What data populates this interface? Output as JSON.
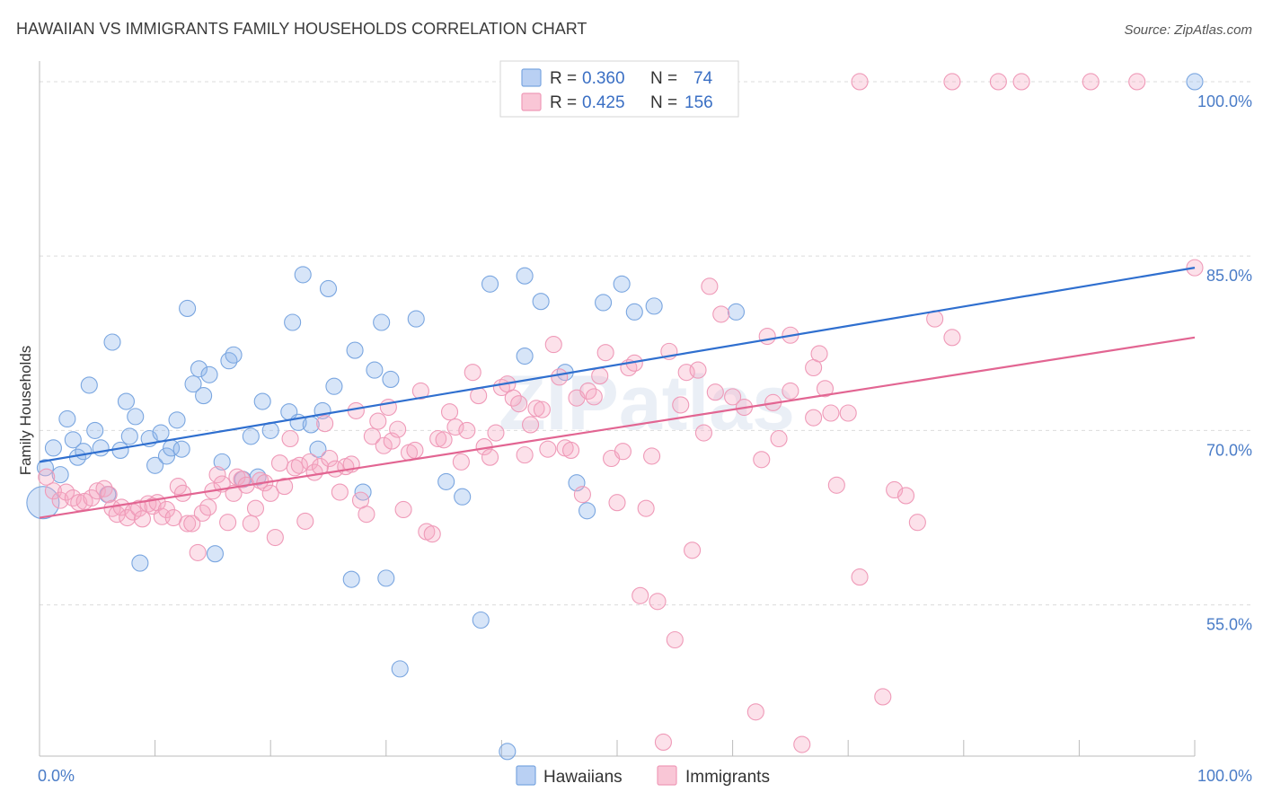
{
  "title": "HAWAIIAN VS IMMIGRANTS FAMILY HOUSEHOLDS CORRELATION CHART",
  "source": "Source: ZipAtlas.com",
  "watermark": "ZIPatlas",
  "legend": {
    "r_label": "R =",
    "n_label": "N =",
    "rows": [
      {
        "r": "0.360",
        "n": "74"
      },
      {
        "r": "0.425",
        "n": "156"
      }
    ]
  },
  "chart_data": {
    "type": "scatter",
    "ylabel": "Family Households",
    "x_tick_labels": [
      "0.0%",
      "100.0%"
    ],
    "y_tick_labels": [
      "55.0%",
      "70.0%",
      "85.0%",
      "100.0%"
    ],
    "y_ticks": [
      55,
      70,
      85,
      100
    ],
    "xlim": [
      0,
      100
    ],
    "ylim": [
      42,
      101
    ],
    "grid": true,
    "legend_position": "top-center",
    "colors": {
      "hawaiians": "#7aa6e0",
      "hawaiians_fill": "rgba(140,180,235,0.35)",
      "hawaiians_line": "#2f6fcf",
      "immigrants": "#ef9ab8",
      "immigrants_fill": "rgba(245,170,195,0.35)",
      "immigrants_line": "#e26592"
    },
    "series": [
      {
        "name": "Hawaiians",
        "trend": {
          "x": [
            0,
            100
          ],
          "y": [
            67.3,
            84.0
          ]
        },
        "points": [
          [
            0.3,
            63.8
          ],
          [
            0.5,
            66.8
          ],
          [
            1.2,
            68.5
          ],
          [
            1.8,
            66.2
          ],
          [
            2.4,
            71.0
          ],
          [
            2.9,
            69.2
          ],
          [
            3.3,
            67.7
          ],
          [
            3.8,
            68.2
          ],
          [
            4.3,
            73.9
          ],
          [
            4.8,
            70.0
          ],
          [
            5.3,
            68.5
          ],
          [
            5.9,
            64.5
          ],
          [
            6.3,
            77.6
          ],
          [
            7.0,
            68.3
          ],
          [
            7.5,
            72.5
          ],
          [
            7.8,
            69.5
          ],
          [
            8.3,
            71.2
          ],
          [
            8.7,
            58.6
          ],
          [
            9.5,
            69.3
          ],
          [
            10.0,
            67.0
          ],
          [
            10.5,
            69.8
          ],
          [
            11.0,
            67.8
          ],
          [
            11.4,
            68.5
          ],
          [
            11.9,
            70.9
          ],
          [
            12.3,
            68.4
          ],
          [
            12.8,
            80.5
          ],
          [
            13.3,
            74.0
          ],
          [
            13.8,
            75.3
          ],
          [
            14.2,
            73.0
          ],
          [
            14.7,
            74.8
          ],
          [
            15.2,
            59.4
          ],
          [
            15.8,
            67.3
          ],
          [
            16.4,
            76.0
          ],
          [
            16.8,
            76.5
          ],
          [
            17.6,
            65.8
          ],
          [
            18.3,
            69.5
          ],
          [
            18.9,
            66.0
          ],
          [
            19.3,
            72.5
          ],
          [
            20.0,
            70.0
          ],
          [
            21.6,
            71.6
          ],
          [
            21.9,
            79.3
          ],
          [
            22.4,
            70.7
          ],
          [
            22.8,
            83.4
          ],
          [
            23.5,
            70.5
          ],
          [
            24.1,
            68.4
          ],
          [
            24.5,
            71.7
          ],
          [
            25.0,
            82.2
          ],
          [
            25.5,
            73.8
          ],
          [
            27.0,
            57.2
          ],
          [
            27.3,
            76.9
          ],
          [
            28.0,
            64.7
          ],
          [
            29.0,
            75.2
          ],
          [
            29.6,
            79.3
          ],
          [
            30.0,
            57.3
          ],
          [
            30.4,
            74.4
          ],
          [
            31.2,
            49.5
          ],
          [
            32.6,
            79.6
          ],
          [
            35.2,
            65.6
          ],
          [
            36.6,
            64.3
          ],
          [
            38.2,
            53.7
          ],
          [
            39.0,
            82.6
          ],
          [
            40.5,
            42.4
          ],
          [
            42.0,
            83.3
          ],
          [
            42.0,
            76.4
          ],
          [
            43.4,
            81.1
          ],
          [
            45.5,
            75.0
          ],
          [
            46.5,
            65.5
          ],
          [
            47.4,
            63.1
          ],
          [
            48.8,
            81.0
          ],
          [
            50.4,
            82.6
          ],
          [
            51.5,
            80.2
          ],
          [
            53.2,
            80.7
          ],
          [
            60.3,
            80.2
          ],
          [
            100.0,
            100.0
          ]
        ]
      },
      {
        "name": "Immigrants",
        "trend": {
          "x": [
            0,
            100
          ],
          "y": [
            62.5,
            78.0
          ]
        },
        "points": [
          [
            0.6,
            66.0
          ],
          [
            1.2,
            64.8
          ],
          [
            1.8,
            64.0
          ],
          [
            2.3,
            64.7
          ],
          [
            2.9,
            64.2
          ],
          [
            3.4,
            63.8
          ],
          [
            3.9,
            63.9
          ],
          [
            4.5,
            64.2
          ],
          [
            5.0,
            64.8
          ],
          [
            5.6,
            65.0
          ],
          [
            6.0,
            64.5
          ],
          [
            6.3,
            63.3
          ],
          [
            6.7,
            62.8
          ],
          [
            7.1,
            63.4
          ],
          [
            7.6,
            62.5
          ],
          [
            8.1,
            63.0
          ],
          [
            8.6,
            63.3
          ],
          [
            8.9,
            62.4
          ],
          [
            9.4,
            63.7
          ],
          [
            9.8,
            63.5
          ],
          [
            10.2,
            63.8
          ],
          [
            10.6,
            62.6
          ],
          [
            11.0,
            63.2
          ],
          [
            11.6,
            62.5
          ],
          [
            12.0,
            65.2
          ],
          [
            12.4,
            64.6
          ],
          [
            12.8,
            62.0
          ],
          [
            13.2,
            62.0
          ],
          [
            13.7,
            59.5
          ],
          [
            14.1,
            62.9
          ],
          [
            14.6,
            63.4
          ],
          [
            15.0,
            64.8
          ],
          [
            15.4,
            66.2
          ],
          [
            15.8,
            65.4
          ],
          [
            16.3,
            62.1
          ],
          [
            16.8,
            64.6
          ],
          [
            17.1,
            66.0
          ],
          [
            17.5,
            65.8
          ],
          [
            17.9,
            65.3
          ],
          [
            18.3,
            62.0
          ],
          [
            18.7,
            63.3
          ],
          [
            19.1,
            65.7
          ],
          [
            19.5,
            65.5
          ],
          [
            20.0,
            64.6
          ],
          [
            20.4,
            60.8
          ],
          [
            20.8,
            67.2
          ],
          [
            21.2,
            65.2
          ],
          [
            21.7,
            69.3
          ],
          [
            22.1,
            66.8
          ],
          [
            22.5,
            67.0
          ],
          [
            23.0,
            62.2
          ],
          [
            23.4,
            67.3
          ],
          [
            23.8,
            66.4
          ],
          [
            24.3,
            66.9
          ],
          [
            24.7,
            70.6
          ],
          [
            25.1,
            67.6
          ],
          [
            25.6,
            66.7
          ],
          [
            26.0,
            64.7
          ],
          [
            26.5,
            66.9
          ],
          [
            27.0,
            67.1
          ],
          [
            27.4,
            71.7
          ],
          [
            27.8,
            64.0
          ],
          [
            28.3,
            62.8
          ],
          [
            28.8,
            69.5
          ],
          [
            29.3,
            70.8
          ],
          [
            29.8,
            68.7
          ],
          [
            30.2,
            72.0
          ],
          [
            30.5,
            69.1
          ],
          [
            31.0,
            70.1
          ],
          [
            31.5,
            63.2
          ],
          [
            32.0,
            68.1
          ],
          [
            32.5,
            68.3
          ],
          [
            33.0,
            73.4
          ],
          [
            33.5,
            61.3
          ],
          [
            34.0,
            61.1
          ],
          [
            34.5,
            69.3
          ],
          [
            35.0,
            69.2
          ],
          [
            35.5,
            71.6
          ],
          [
            36.0,
            70.3
          ],
          [
            36.5,
            67.3
          ],
          [
            37.0,
            70.0
          ],
          [
            37.5,
            75.0
          ],
          [
            38.0,
            73.0
          ],
          [
            38.5,
            68.6
          ],
          [
            39.0,
            67.7
          ],
          [
            39.5,
            69.8
          ],
          [
            40.0,
            73.7
          ],
          [
            40.5,
            74.0
          ],
          [
            41.0,
            72.8
          ],
          [
            41.5,
            72.3
          ],
          [
            42.0,
            67.9
          ],
          [
            42.5,
            70.5
          ],
          [
            43.0,
            71.9
          ],
          [
            43.5,
            71.8
          ],
          [
            44.0,
            68.4
          ],
          [
            44.5,
            77.4
          ],
          [
            45.0,
            74.6
          ],
          [
            45.5,
            68.5
          ],
          [
            46.0,
            68.3
          ],
          [
            46.5,
            72.8
          ],
          [
            47.0,
            64.5
          ],
          [
            47.5,
            73.4
          ],
          [
            48.0,
            72.9
          ],
          [
            48.5,
            74.7
          ],
          [
            49.0,
            76.7
          ],
          [
            49.5,
            67.6
          ],
          [
            50.0,
            63.8
          ],
          [
            50.5,
            68.2
          ],
          [
            51.0,
            75.4
          ],
          [
            51.5,
            75.8
          ],
          [
            52.0,
            55.8
          ],
          [
            52.5,
            63.3
          ],
          [
            53.0,
            67.8
          ],
          [
            53.5,
            55.3
          ],
          [
            54.0,
            43.2
          ],
          [
            54.5,
            76.8
          ],
          [
            55.0,
            52.0
          ],
          [
            55.5,
            72.2
          ],
          [
            56.0,
            75.0
          ],
          [
            56.5,
            59.7
          ],
          [
            57.0,
            75.2
          ],
          [
            57.5,
            69.8
          ],
          [
            58.0,
            82.4
          ],
          [
            58.5,
            73.3
          ],
          [
            59.0,
            80.0
          ],
          [
            60.0,
            72.9
          ],
          [
            61.0,
            72.0
          ],
          [
            62.0,
            45.8
          ],
          [
            62.5,
            67.5
          ],
          [
            63.0,
            78.1
          ],
          [
            63.5,
            72.4
          ],
          [
            64.0,
            69.3
          ],
          [
            65.0,
            73.4
          ],
          [
            66.0,
            43.0
          ],
          [
            67.0,
            71.1
          ],
          [
            67.5,
            76.6
          ],
          [
            68.0,
            73.6
          ],
          [
            68.5,
            71.5
          ],
          [
            69.0,
            65.3
          ],
          [
            70.0,
            71.5
          ],
          [
            71.0,
            57.4
          ],
          [
            73.0,
            47.1
          ],
          [
            74.0,
            64.9
          ],
          [
            75.0,
            64.4
          ],
          [
            76.0,
            62.1
          ],
          [
            77.5,
            79.6
          ],
          [
            65.0,
            78.2
          ],
          [
            67.0,
            75.4
          ],
          [
            71.0,
            100.0
          ],
          [
            79.0,
            100.0
          ],
          [
            79.0,
            78.0
          ],
          [
            83.0,
            100.0
          ],
          [
            85.0,
            100.0
          ],
          [
            91.0,
            100.0
          ],
          [
            95.0,
            100.0
          ],
          [
            100.0,
            84.0
          ]
        ]
      }
    ]
  },
  "bottom_legend": [
    "Hawaiians",
    "Immigrants"
  ]
}
